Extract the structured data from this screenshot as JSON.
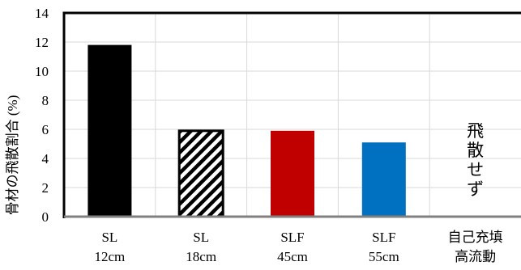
{
  "chart_data": {
    "type": "bar",
    "ylabel": "骨材の飛散割合 (%)",
    "xlabel": "",
    "ylim": [
      0,
      14
    ],
    "yticks": [
      0,
      2,
      4,
      6,
      8,
      10,
      12,
      14
    ],
    "grid": true,
    "categories": [
      [
        "SL",
        "12cm"
      ],
      [
        "SL",
        "18cm"
      ],
      [
        "SLF",
        "45cm"
      ],
      [
        "SLF",
        "55cm"
      ],
      [
        "自己充填",
        "高流動"
      ]
    ],
    "values": [
      11.8,
      5.9,
      5.9,
      5.1,
      0
    ],
    "bar_styles": [
      {
        "fill": "#000000",
        "pattern": "solid"
      },
      {
        "fill": "#000000",
        "pattern": "diagonal-hatch"
      },
      {
        "fill": "#c00000",
        "pattern": "solid"
      },
      {
        "fill": "#0070c0",
        "pattern": "solid"
      },
      {
        "fill": "none",
        "pattern": "none"
      }
    ],
    "annotations": [
      {
        "category_index": 4,
        "text": [
          "飛",
          "散",
          "せ",
          "ず"
        ]
      }
    ]
  }
}
